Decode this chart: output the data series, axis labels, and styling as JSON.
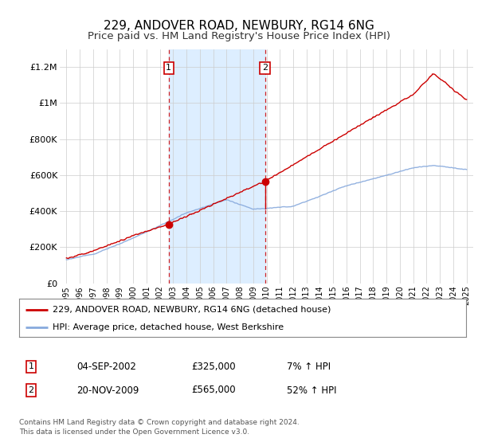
{
  "title": "229, ANDOVER ROAD, NEWBURY, RG14 6NG",
  "subtitle": "Price paid vs. HM Land Registry's House Price Index (HPI)",
  "title_fontsize": 11,
  "subtitle_fontsize": 9.5,
  "background_color": "#ffffff",
  "plot_bg_color": "#ffffff",
  "grid_color": "#cccccc",
  "shade_color": "#ddeeff",
  "sale1_year": 2002.67,
  "sale2_year": 2009.89,
  "sale1_price": 325000,
  "sale2_price": 565000,
  "red_line_color": "#cc0000",
  "blue_line_color": "#88aadd",
  "marker_box_color": "#cc0000",
  "legend_label_red": "229, ANDOVER ROAD, NEWBURY, RG14 6NG (detached house)",
  "legend_label_blue": "HPI: Average price, detached house, West Berkshire",
  "table_row1": [
    "1",
    "04-SEP-2002",
    "£325,000",
    "7% ↑ HPI"
  ],
  "table_row2": [
    "2",
    "20-NOV-2009",
    "£565,000",
    "52% ↑ HPI"
  ],
  "footer": "Contains HM Land Registry data © Crown copyright and database right 2024.\nThis data is licensed under the Open Government Licence v3.0.",
  "ylim": [
    0,
    1300000
  ],
  "xlim_start": 1994.5,
  "xlim_end": 2025.5,
  "yticks": [
    0,
    200000,
    400000,
    600000,
    800000,
    1000000,
    1200000
  ],
  "ytick_labels": [
    "£0",
    "£200K",
    "£400K",
    "£600K",
    "£800K",
    "£1M",
    "£1.2M"
  ],
  "xticks": [
    1995,
    1996,
    1997,
    1998,
    1999,
    2000,
    2001,
    2002,
    2003,
    2004,
    2005,
    2006,
    2007,
    2008,
    2009,
    2010,
    2011,
    2012,
    2013,
    2014,
    2015,
    2016,
    2017,
    2018,
    2019,
    2020,
    2021,
    2022,
    2023,
    2024,
    2025
  ]
}
